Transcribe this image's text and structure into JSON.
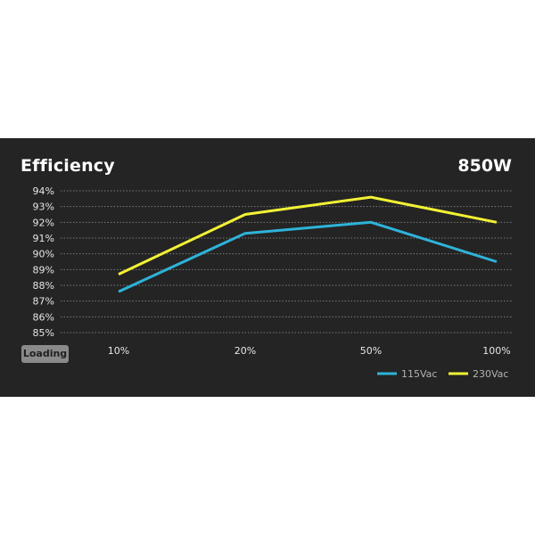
{
  "header": {
    "title": "Efficiency",
    "model": "850W"
  },
  "badge": {
    "label": "Loading"
  },
  "chart_data": {
    "type": "line",
    "categories": [
      "10%",
      "20%",
      "50%",
      "100%"
    ],
    "y_ticks": [
      "94%",
      "93%",
      "92%",
      "91%",
      "90%",
      "89%",
      "88%",
      "87%",
      "86%",
      "85%"
    ],
    "ylim": [
      85,
      94
    ],
    "grid": true,
    "legend_position": "bottom-right",
    "series": [
      {
        "name": "115Vac",
        "values": [
          87.6,
          91.3,
          92.0,
          89.5
        ],
        "color": "#2eb3d9"
      },
      {
        "name": "230Vac",
        "values": [
          88.7,
          92.5,
          93.6,
          92.0
        ],
        "color": "#f2f235"
      }
    ],
    "colors": {
      "background": "#242424",
      "grid": "#7a7a7a",
      "text": "#ffffff"
    }
  }
}
